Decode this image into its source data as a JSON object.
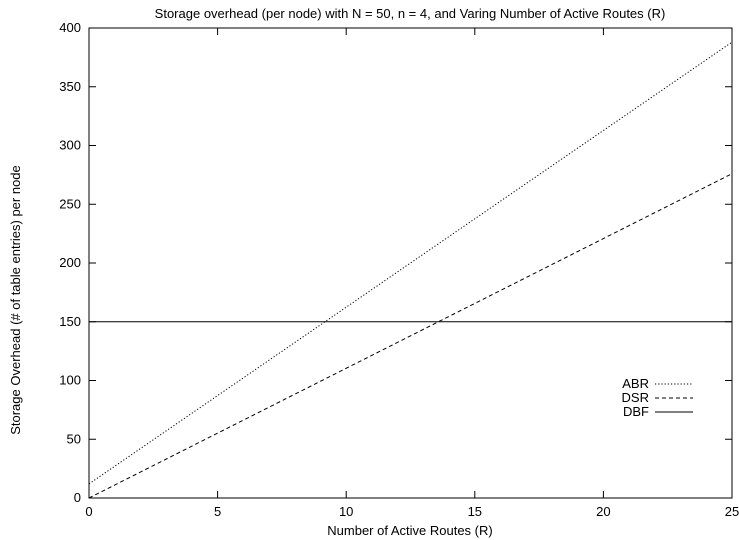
{
  "chart_data": {
    "type": "line",
    "title": "Storage overhead (per node) with N = 50, n = 4, and Varing Number of Active Routes (R)",
    "xlabel": "Number of Active Routes (R)",
    "ylabel": "Storage Overhead (# of table entries) per node",
    "xlim": [
      0,
      25
    ],
    "ylim": [
      0,
      400
    ],
    "xticks": [
      0,
      5,
      10,
      15,
      20,
      25
    ],
    "yticks": [
      0,
      50,
      100,
      150,
      200,
      250,
      300,
      350,
      400
    ],
    "grid": false,
    "legend_position": "right",
    "series": [
      {
        "name": "ABR",
        "style": "dotted",
        "x": [
          0,
          25
        ],
        "y": [
          12,
          388
        ]
      },
      {
        "name": "DSR",
        "style": "dashed",
        "x": [
          0,
          25
        ],
        "y": [
          0,
          276
        ]
      },
      {
        "name": "DBF",
        "style": "solid",
        "x": [
          0,
          25
        ],
        "y": [
          150,
          150
        ]
      }
    ]
  }
}
